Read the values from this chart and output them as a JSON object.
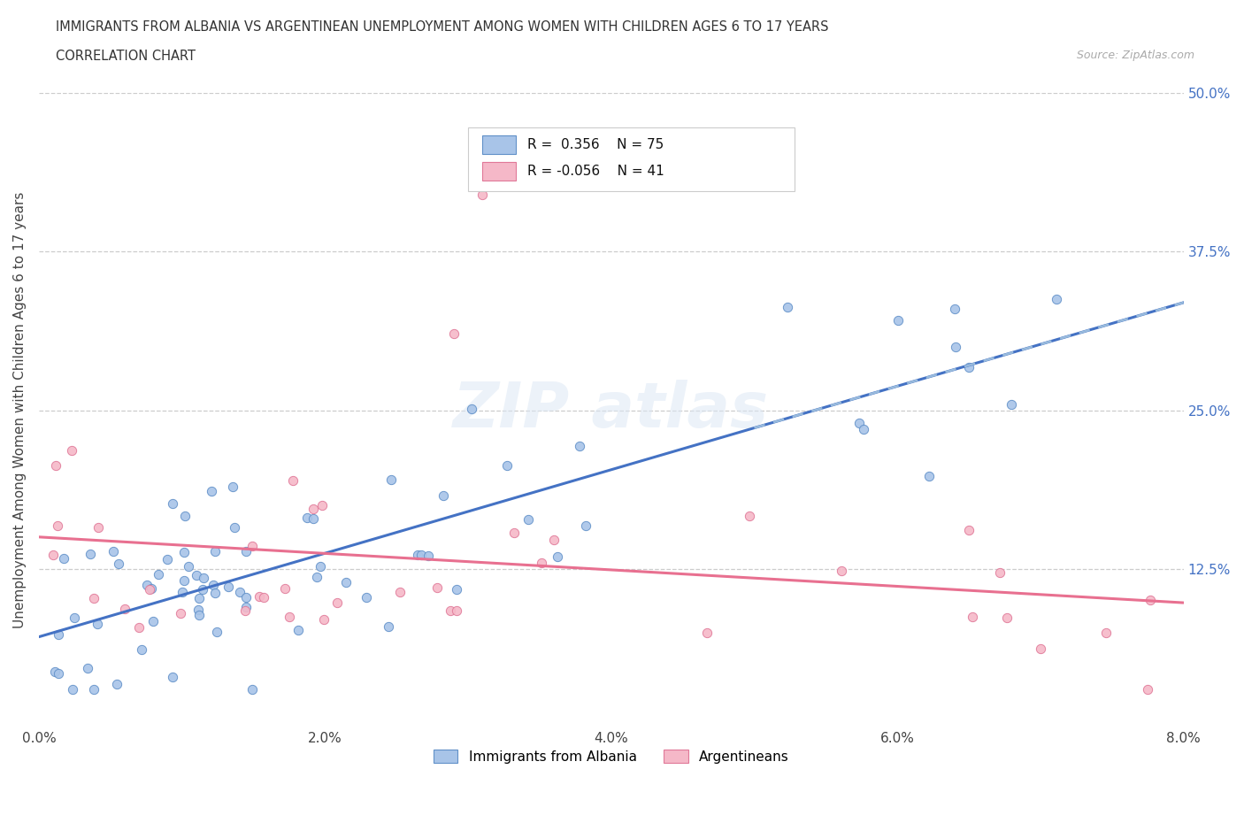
{
  "title_line1": "IMMIGRANTS FROM ALBANIA VS ARGENTINEAN UNEMPLOYMENT AMONG WOMEN WITH CHILDREN AGES 6 TO 17 YEARS",
  "title_line2": "CORRELATION CHART",
  "source_text": "Source: ZipAtlas.com",
  "ylabel": "Unemployment Among Women with Children Ages 6 to 17 years",
  "xlim": [
    0.0,
    0.08
  ],
  "ylim": [
    0.0,
    0.5
  ],
  "xtick_labels": [
    "0.0%",
    "2.0%",
    "4.0%",
    "6.0%",
    "8.0%"
  ],
  "xtick_values": [
    0.0,
    0.02,
    0.04,
    0.06,
    0.08
  ],
  "ytick_labels": [
    "12.5%",
    "25.0%",
    "37.5%",
    "50.0%"
  ],
  "ytick_values": [
    0.125,
    0.25,
    0.375,
    0.5
  ],
  "legend_r1": "R =  0.356",
  "legend_n1": "N = 75",
  "legend_r2": "R = -0.056",
  "legend_n2": "N = 41",
  "blue_color": "#a8c4e8",
  "pink_color": "#f5b8c8",
  "blue_edge": "#6090c8",
  "pink_edge": "#e07898",
  "trendline_blue": "#4472c4",
  "trendline_pink": "#e87090",
  "trendline_ext_color": "#99bbdd",
  "grid_color": "#cccccc",
  "N_blue": 75,
  "N_pink": 41
}
